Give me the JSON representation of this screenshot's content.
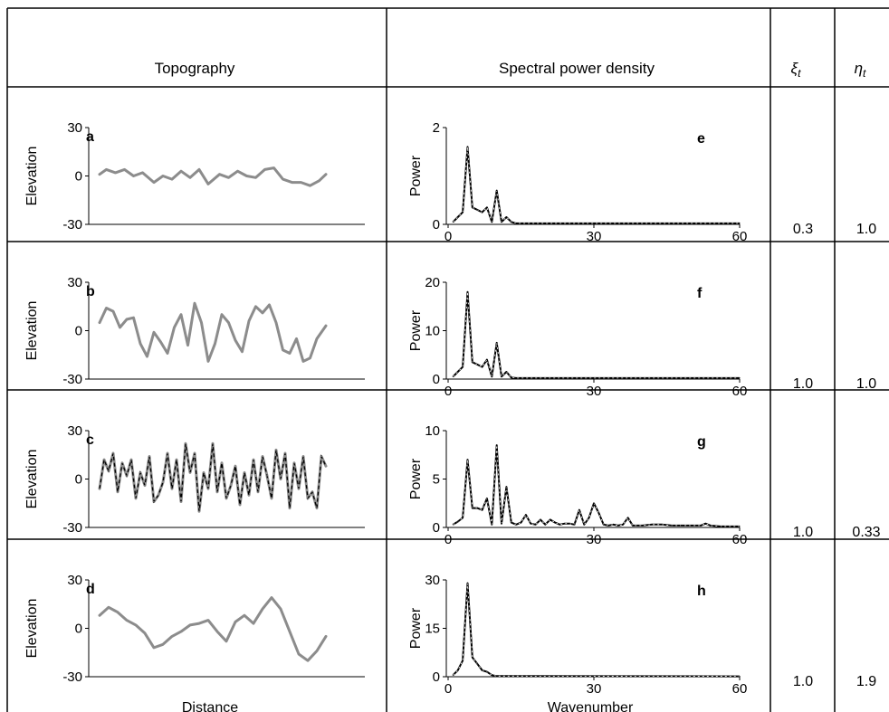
{
  "headers": {
    "topography": "Topography",
    "spectral": "Spectral power density",
    "xi": "ξ",
    "xi_sub": "t",
    "eta": "η",
    "eta_sub": "t"
  },
  "x_axis_labels": {
    "left": "Distance",
    "right": "Wavenumber"
  },
  "chart_data": [
    {
      "panel": "a",
      "type": "line",
      "ylabel": "Elevation",
      "yticks": [
        "30",
        "0",
        "-30"
      ],
      "ylim": [
        -30,
        30
      ],
      "xlim": [
        0,
        100
      ],
      "grid": false,
      "x": [
        0,
        3,
        7,
        11,
        15,
        19,
        24,
        28,
        32,
        36,
        40,
        44,
        48,
        53,
        57,
        61,
        65,
        69,
        73,
        77,
        81,
        85,
        89,
        93,
        97,
        100
      ],
      "values": [
        1,
        4,
        2,
        4,
        0,
        2,
        -4,
        0,
        -2,
        3,
        -1,
        4,
        -5,
        1,
        -1,
        3,
        0,
        -1,
        4,
        5,
        -2,
        -4,
        -4,
        -6,
        -3,
        1
      ]
    },
    {
      "panel": "b",
      "type": "line",
      "ylabel": "Elevation",
      "yticks": [
        "30",
        "0",
        "-30"
      ],
      "ylim": [
        -30,
        30
      ],
      "xlim": [
        0,
        100
      ],
      "grid": false,
      "x": [
        0,
        3,
        6,
        9,
        12,
        15,
        18,
        21,
        24,
        27,
        30,
        33,
        36,
        39,
        42,
        45,
        48,
        51,
        54,
        57,
        60,
        63,
        66,
        69,
        72,
        75,
        78,
        81,
        84,
        87,
        90,
        93,
        96,
        100
      ],
      "values": [
        5,
        14,
        12,
        2,
        7,
        8,
        -8,
        -16,
        -1,
        -7,
        -14,
        2,
        10,
        -9,
        17,
        5,
        -19,
        -8,
        10,
        5,
        -6,
        -13,
        6,
        15,
        11,
        16,
        5,
        -12,
        -14,
        -5,
        -19,
        -17,
        -5,
        3
      ]
    },
    {
      "panel": "c",
      "type": "line",
      "ylabel": "Elevation",
      "yticks": [
        "30",
        "0",
        "-30"
      ],
      "ylim": [
        -30,
        30
      ],
      "xlim": [
        0,
        100
      ],
      "grid": false,
      "x": [
        0,
        2,
        4,
        6,
        8,
        10,
        12,
        14,
        16,
        18,
        20,
        22,
        24,
        26,
        28,
        30,
        32,
        34,
        36,
        38,
        40,
        42,
        44,
        46,
        48,
        50,
        52,
        54,
        56,
        58,
        60,
        62,
        64,
        66,
        68,
        70,
        72,
        74,
        76,
        78,
        80,
        82,
        84,
        86,
        88,
        90,
        92,
        94,
        96,
        98,
        100
      ],
      "values": [
        -6,
        12,
        5,
        16,
        -8,
        10,
        2,
        12,
        -12,
        4,
        -4,
        14,
        -14,
        -10,
        -2,
        16,
        -6,
        12,
        -14,
        22,
        4,
        16,
        -20,
        4,
        -6,
        22,
        -8,
        10,
        -12,
        -4,
        8,
        -16,
        4,
        -10,
        12,
        -8,
        14,
        2,
        -12,
        18,
        0,
        16,
        -18,
        10,
        -6,
        14,
        -12,
        -8,
        -18,
        14,
        8
      ]
    },
    {
      "panel": "d",
      "type": "line",
      "ylabel": "Elevation",
      "yticks": [
        "30",
        "0",
        "-30"
      ],
      "ylim": [
        -30,
        30
      ],
      "xlim": [
        0,
        100
      ],
      "grid": false,
      "x": [
        0,
        4,
        8,
        12,
        16,
        20,
        24,
        28,
        32,
        36,
        40,
        44,
        48,
        52,
        56,
        60,
        64,
        68,
        72,
        76,
        80,
        84,
        88,
        92,
        96,
        100
      ],
      "values": [
        8,
        13,
        10,
        5,
        2,
        -3,
        -12,
        -10,
        -5,
        -2,
        2,
        3,
        5,
        -2,
        -8,
        4,
        8,
        3,
        12,
        19,
        12,
        -2,
        -16,
        -20,
        -14,
        -5
      ]
    },
    {
      "panel": "e",
      "type": "line",
      "ylabel": "Power",
      "yticks": [
        "2",
        "0"
      ],
      "ylim": [
        0,
        2
      ],
      "xticks": [
        "0",
        "30",
        "60"
      ],
      "xlim": [
        0,
        60
      ],
      "grid": false,
      "x": [
        1,
        2,
        3,
        4,
        5,
        6,
        7,
        8,
        9,
        10,
        11,
        12,
        13,
        14,
        60
      ],
      "values": [
        0.05,
        0.15,
        0.25,
        1.6,
        0.35,
        0.3,
        0.25,
        0.35,
        0.05,
        0.7,
        0.05,
        0.15,
        0.05,
        0.02,
        0.02
      ]
    },
    {
      "panel": "f",
      "type": "line",
      "ylabel": "Power",
      "yticks": [
        "20",
        "10",
        "0"
      ],
      "ylim": [
        0,
        20
      ],
      "xticks": [
        "0",
        "30",
        "60"
      ],
      "xlim": [
        0,
        60
      ],
      "grid": false,
      "x": [
        1,
        2,
        3,
        4,
        5,
        6,
        7,
        8,
        9,
        10,
        11,
        12,
        13,
        14,
        60
      ],
      "values": [
        0.5,
        1.5,
        2.5,
        18,
        3.5,
        3,
        2.5,
        4,
        0.5,
        7.5,
        0.5,
        1.5,
        0.3,
        0.2,
        0.2
      ]
    },
    {
      "panel": "g",
      "type": "line",
      "ylabel": "Power",
      "yticks": [
        "10",
        "5",
        "0"
      ],
      "ylim": [
        0,
        10
      ],
      "xticks": [
        "0",
        "30",
        "60"
      ],
      "xlim": [
        0,
        60
      ],
      "grid": false,
      "x": [
        1,
        2,
        3,
        4,
        5,
        6,
        7,
        8,
        9,
        10,
        11,
        12,
        13,
        14,
        15,
        16,
        17,
        18,
        19,
        20,
        21,
        22,
        23,
        24,
        25,
        26,
        27,
        28,
        29,
        30,
        31,
        32,
        33,
        34,
        35,
        36,
        37,
        38,
        40,
        42,
        44,
        46,
        48,
        50,
        52,
        53,
        54,
        56,
        60
      ],
      "values": [
        0.3,
        0.6,
        1.0,
        7.0,
        2.0,
        2.0,
        1.8,
        3.0,
        0.3,
        8.5,
        0.4,
        4.2,
        0.5,
        0.3,
        0.5,
        1.3,
        0.4,
        0.3,
        0.8,
        0.3,
        0.8,
        0.5,
        0.3,
        0.4,
        0.4,
        0.3,
        1.8,
        0.3,
        1.0,
        2.5,
        1.5,
        0.3,
        0.2,
        0.3,
        0.2,
        0.3,
        1.0,
        0.2,
        0.2,
        0.3,
        0.3,
        0.2,
        0.2,
        0.2,
        0.2,
        0.4,
        0.2,
        0.1,
        0.1
      ]
    },
    {
      "panel": "h",
      "type": "line",
      "ylabel": "Power",
      "yticks": [
        "30",
        "15",
        "0"
      ],
      "ylim": [
        0,
        30
      ],
      "xticks": [
        "0",
        "30",
        "60"
      ],
      "xlim": [
        0,
        60
      ],
      "grid": false,
      "x": [
        1,
        2,
        3,
        4,
        5,
        6,
        7,
        8,
        9,
        10,
        60
      ],
      "values": [
        0.5,
        2,
        5,
        29,
        6,
        4,
        2,
        1.5,
        0.5,
        0.2,
        0.1
      ]
    }
  ],
  "parameters": [
    {
      "row": "a",
      "xi": "0.3",
      "eta": "1.0"
    },
    {
      "row": "b",
      "xi": "1.0",
      "eta": "1.0"
    },
    {
      "row": "c",
      "xi": "1.0",
      "eta": "0.33"
    },
    {
      "row": "d",
      "xi": "1.0",
      "eta": "1.9"
    }
  ],
  "colors": {
    "topo_line": "#8c8c8c",
    "spectrum_line": "#000000",
    "grid_border": "#000000"
  }
}
